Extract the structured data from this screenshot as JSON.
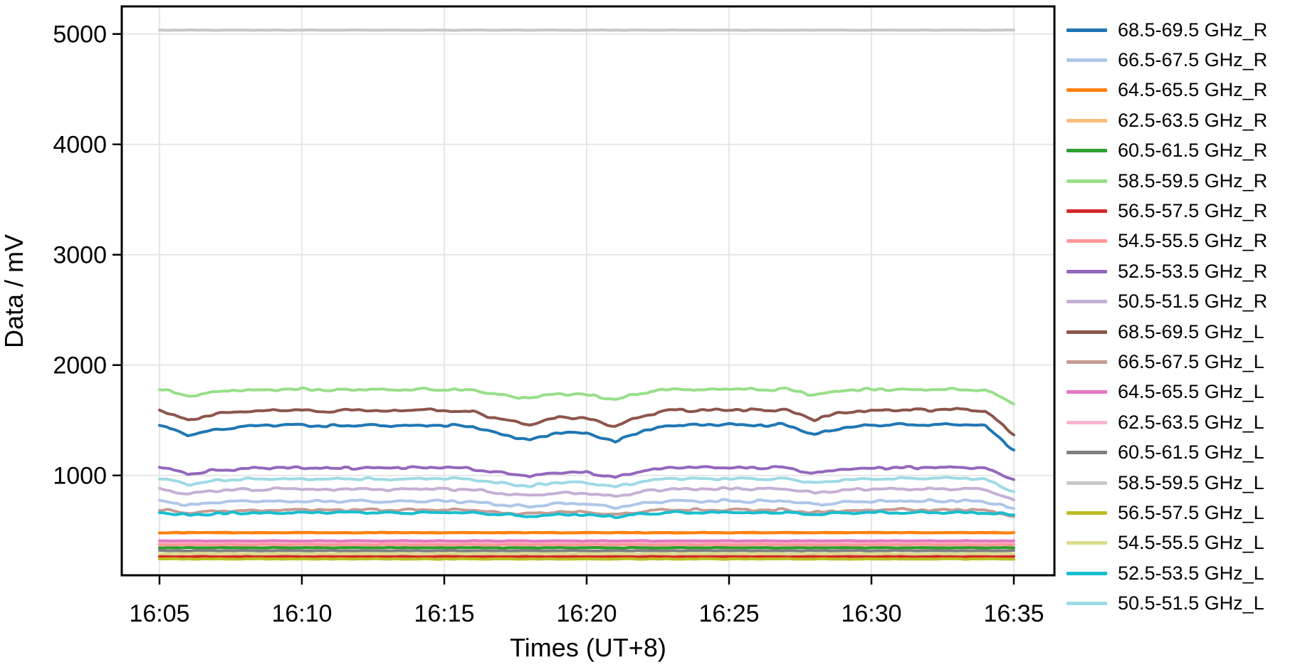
{
  "chart_data": {
    "type": "line",
    "title": "",
    "xlabel": "Times (UT+8)",
    "ylabel": "Data / mV",
    "grid": true,
    "legend_position": "right",
    "x_minutes": [
      5,
      6,
      7,
      8,
      9,
      10,
      11,
      12,
      13,
      14,
      15,
      16,
      17,
      18,
      19,
      20,
      21,
      22,
      23,
      24,
      25,
      26,
      27,
      28,
      29,
      30,
      31,
      32,
      33,
      34,
      35
    ],
    "xlim_minutes": [
      3.675,
      36.425
    ],
    "ylim": [
      95,
      5250
    ],
    "xticks": [
      {
        "minute": 5,
        "label": "16:05"
      },
      {
        "minute": 10,
        "label": "16:10"
      },
      {
        "minute": 15,
        "label": "16:15"
      },
      {
        "minute": 20,
        "label": "16:20"
      },
      {
        "minute": 25,
        "label": "16:25"
      },
      {
        "minute": 30,
        "label": "16:30"
      },
      {
        "minute": 35,
        "label": "16:35"
      }
    ],
    "yticks": [
      1000,
      2000,
      3000,
      4000,
      5000
    ],
    "series": [
      {
        "name": "68.5-69.5 GHz_R",
        "color": "#1f77b4",
        "jitter": 10,
        "zorder": 2,
        "values": [
          1461,
          1361,
          1418,
          1446,
          1454,
          1457,
          1446,
          1457,
          1450,
          1457,
          1454,
          1442,
          1370,
          1323,
          1389,
          1380,
          1304,
          1408,
          1457,
          1454,
          1461,
          1454,
          1459,
          1370,
          1437,
          1454,
          1461,
          1456,
          1465,
          1450,
          1230
        ]
      },
      {
        "name": "66.5-67.5 GHz_R",
        "color": "#aec7e8",
        "jitter": 10,
        "zorder": 2,
        "values": [
          769,
          732,
          753,
          763,
          766,
          767,
          763,
          767,
          764,
          767,
          766,
          762,
          735,
          718,
          742,
          739,
          711,
          749,
          767,
          766,
          769,
          766,
          768,
          735,
          760,
          766,
          769,
          767,
          770,
          764,
          700
        ]
      },
      {
        "name": "64.5-65.5 GHz_R",
        "color": "#ff7f0e",
        "jitter": 2.5,
        "zorder": 2,
        "values": [
          482
        ]
      },
      {
        "name": "62.5-63.5 GHz_R",
        "color": "#ffbb78",
        "jitter": 2.5,
        "zorder": 1,
        "values": [
          479
        ]
      },
      {
        "name": "60.5-61.5 GHz_R",
        "color": "#2ca02c",
        "jitter": 2,
        "zorder": 2,
        "values": [
          345
        ]
      },
      {
        "name": "58.5-59.5 GHz_R",
        "color": "#98df8a",
        "jitter": 10,
        "zorder": 2,
        "values": [
          1783,
          1722,
          1756,
          1774,
          1778,
          1780,
          1774,
          1780,
          1776,
          1780,
          1778,
          1771,
          1728,
          1699,
          1739,
          1733,
          1687,
          1751,
          1780,
          1778,
          1783,
          1778,
          1782,
          1728,
          1768,
          1778,
          1783,
          1779,
          1785,
          1776,
          1650
        ]
      },
      {
        "name": "56.5-57.5 GHz_R",
        "color": "#d62728",
        "jitter": 2,
        "zorder": 2,
        "values": [
          265
        ]
      },
      {
        "name": "54.5-55.5 GHz_R",
        "color": "#ff9896",
        "jitter": 2.5,
        "zorder": 2,
        "values": [
          372
        ]
      },
      {
        "name": "52.5-53.5 GHz_R",
        "color": "#9467bd",
        "jitter": 10,
        "zorder": 2,
        "values": [
          1073,
          1015,
          1048,
          1064,
          1068,
          1071,
          1064,
          1071,
          1066,
          1071,
          1068,
          1062,
          1020,
          993,
          1031,
          1026,
          982,
          1042,
          1071,
          1068,
          1073,
          1068,
          1072,
          1020,
          1059,
          1068,
          1073,
          1070,
          1075,
          1066,
          960
        ]
      },
      {
        "name": "50.5-51.5 GHz_R",
        "color": "#c5b0d5",
        "jitter": 10,
        "zorder": 2,
        "values": [
          878,
          833,
          859,
          872,
          875,
          877,
          872,
          877,
          873,
          877,
          875,
          870,
          838,
          816,
          846,
          842,
          808,
          855,
          877,
          875,
          878,
          875,
          877,
          838,
          867,
          875,
          878,
          876,
          880,
          873,
          775
        ]
      },
      {
        "name": "68.5-69.5 GHz_L",
        "color": "#8c564b",
        "jitter": 10,
        "zorder": 2,
        "values": [
          1596,
          1498,
          1554,
          1582,
          1589,
          1593,
          1582,
          1593,
          1585,
          1593,
          1589,
          1578,
          1508,
          1461,
          1526,
          1517,
          1443,
          1545,
          1593,
          1589,
          1596,
          1589,
          1594,
          1508,
          1572,
          1589,
          1596,
          1591,
          1600,
          1585,
          1370
        ]
      },
      {
        "name": "66.5-67.5 GHz_L",
        "color": "#c49c94",
        "jitter": 9,
        "zorder": 2,
        "values": [
          689,
          660,
          676,
          685,
          687,
          688,
          685,
          688,
          686,
          688,
          687,
          683,
          663,
          649,
          668,
          665,
          643,
          674,
          688,
          687,
          689,
          687,
          688,
          663,
          682,
          687,
          689,
          687,
          690,
          686,
          630
        ]
      },
      {
        "name": "64.5-65.5 GHz_L",
        "color": "#e377c2",
        "jitter": 2.5,
        "zorder": 2,
        "values": [
          407
        ]
      },
      {
        "name": "62.5-63.5 GHz_L",
        "color": "#f7b6d2",
        "jitter": 2.5,
        "zorder": 1,
        "values": [
          391
        ]
      },
      {
        "name": "60.5-61.5 GHz_L",
        "color": "#7f7f7f",
        "jitter": 2.5,
        "zorder": 2,
        "values": [
          318
        ]
      },
      {
        "name": "58.5-59.5 GHz_L",
        "color": "#c7c7c7",
        "jitter": 1.5,
        "zorder": 2,
        "values": [
          5035
        ]
      },
      {
        "name": "56.5-57.5 GHz_L",
        "color": "#bcbd22",
        "jitter": 2.5,
        "zorder": 2,
        "values": [
          243
        ]
      },
      {
        "name": "54.5-55.5 GHz_L",
        "color": "#dbdb8d",
        "jitter": 2.5,
        "zorder": 2,
        "values": [
          290
        ]
      },
      {
        "name": "52.5-53.5 GHz_L",
        "color": "#17becf",
        "jitter": 9,
        "zorder": 2,
        "values": [
          664,
          640,
          654,
          661,
          662,
          663,
          661,
          663,
          661,
          663,
          662,
          660,
          643,
          631,
          647,
          645,
          627,
          652,
          663,
          662,
          664,
          662,
          664,
          643,
          658,
          662,
          664,
          663,
          665,
          661,
          645
        ]
      },
      {
        "name": "50.5-51.5 GHz_L",
        "color": "#9edae5",
        "jitter": 9,
        "zorder": 2,
        "values": [
          973,
          923,
          951,
          966,
          969,
          971,
          966,
          971,
          967,
          971,
          969,
          964,
          928,
          904,
          937,
          932,
          894,
          947,
          971,
          969,
          973,
          969,
          972,
          928,
          961,
          969,
          973,
          970,
          975,
          967,
          850
        ]
      }
    ]
  },
  "colors": {
    "background": "#ffffff",
    "grid": "#e4e4e4",
    "spine": "#000000",
    "tick": "#000000",
    "text": "#000000"
  }
}
